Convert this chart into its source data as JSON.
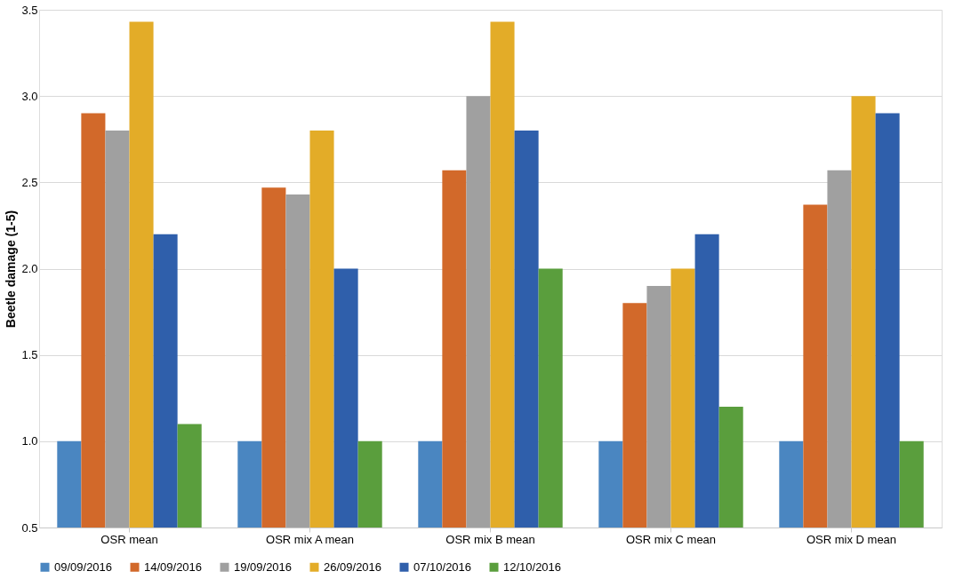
{
  "chart_data": {
    "type": "bar",
    "ylabel": "Beetle damage (1-5)",
    "categories": [
      "OSR mean",
      "OSR mix A mean",
      "OSR mix B mean",
      "OSR mix C mean",
      "OSR mix D mean"
    ],
    "series": [
      {
        "name": "09/09/2016",
        "color": "#4a86c1",
        "values": [
          1.0,
          1.0,
          1.0,
          1.0,
          1.0
        ]
      },
      {
        "name": "14/09/2016",
        "color": "#d2692a",
        "values": [
          2.9,
          2.47,
          2.57,
          1.8,
          2.37
        ]
      },
      {
        "name": "19/09/2016",
        "color": "#a0a0a0",
        "values": [
          2.8,
          2.43,
          3.0,
          1.9,
          2.57
        ]
      },
      {
        "name": "26/09/2016",
        "color": "#e3ac28",
        "values": [
          3.43,
          2.8,
          3.43,
          2.0,
          3.0
        ]
      },
      {
        "name": "07/10/2016",
        "color": "#2f5fab",
        "values": [
          2.2,
          2.0,
          2.8,
          2.2,
          2.9
        ]
      },
      {
        "name": "12/10/2016",
        "color": "#5a9e3d",
        "values": [
          1.1,
          1.0,
          2.0,
          1.2,
          1.0
        ]
      }
    ],
    "ylim": [
      0.5,
      3.5
    ],
    "yticks": [
      0.5,
      {
        "value": 1,
        "label": "1.0"
      },
      1.5,
      {
        "value": 2,
        "label": "2.0"
      },
      2.5,
      {
        "value": 3,
        "label": "3.0"
      },
      3.5
    ],
    "grid": "y",
    "legend": "bottom"
  }
}
